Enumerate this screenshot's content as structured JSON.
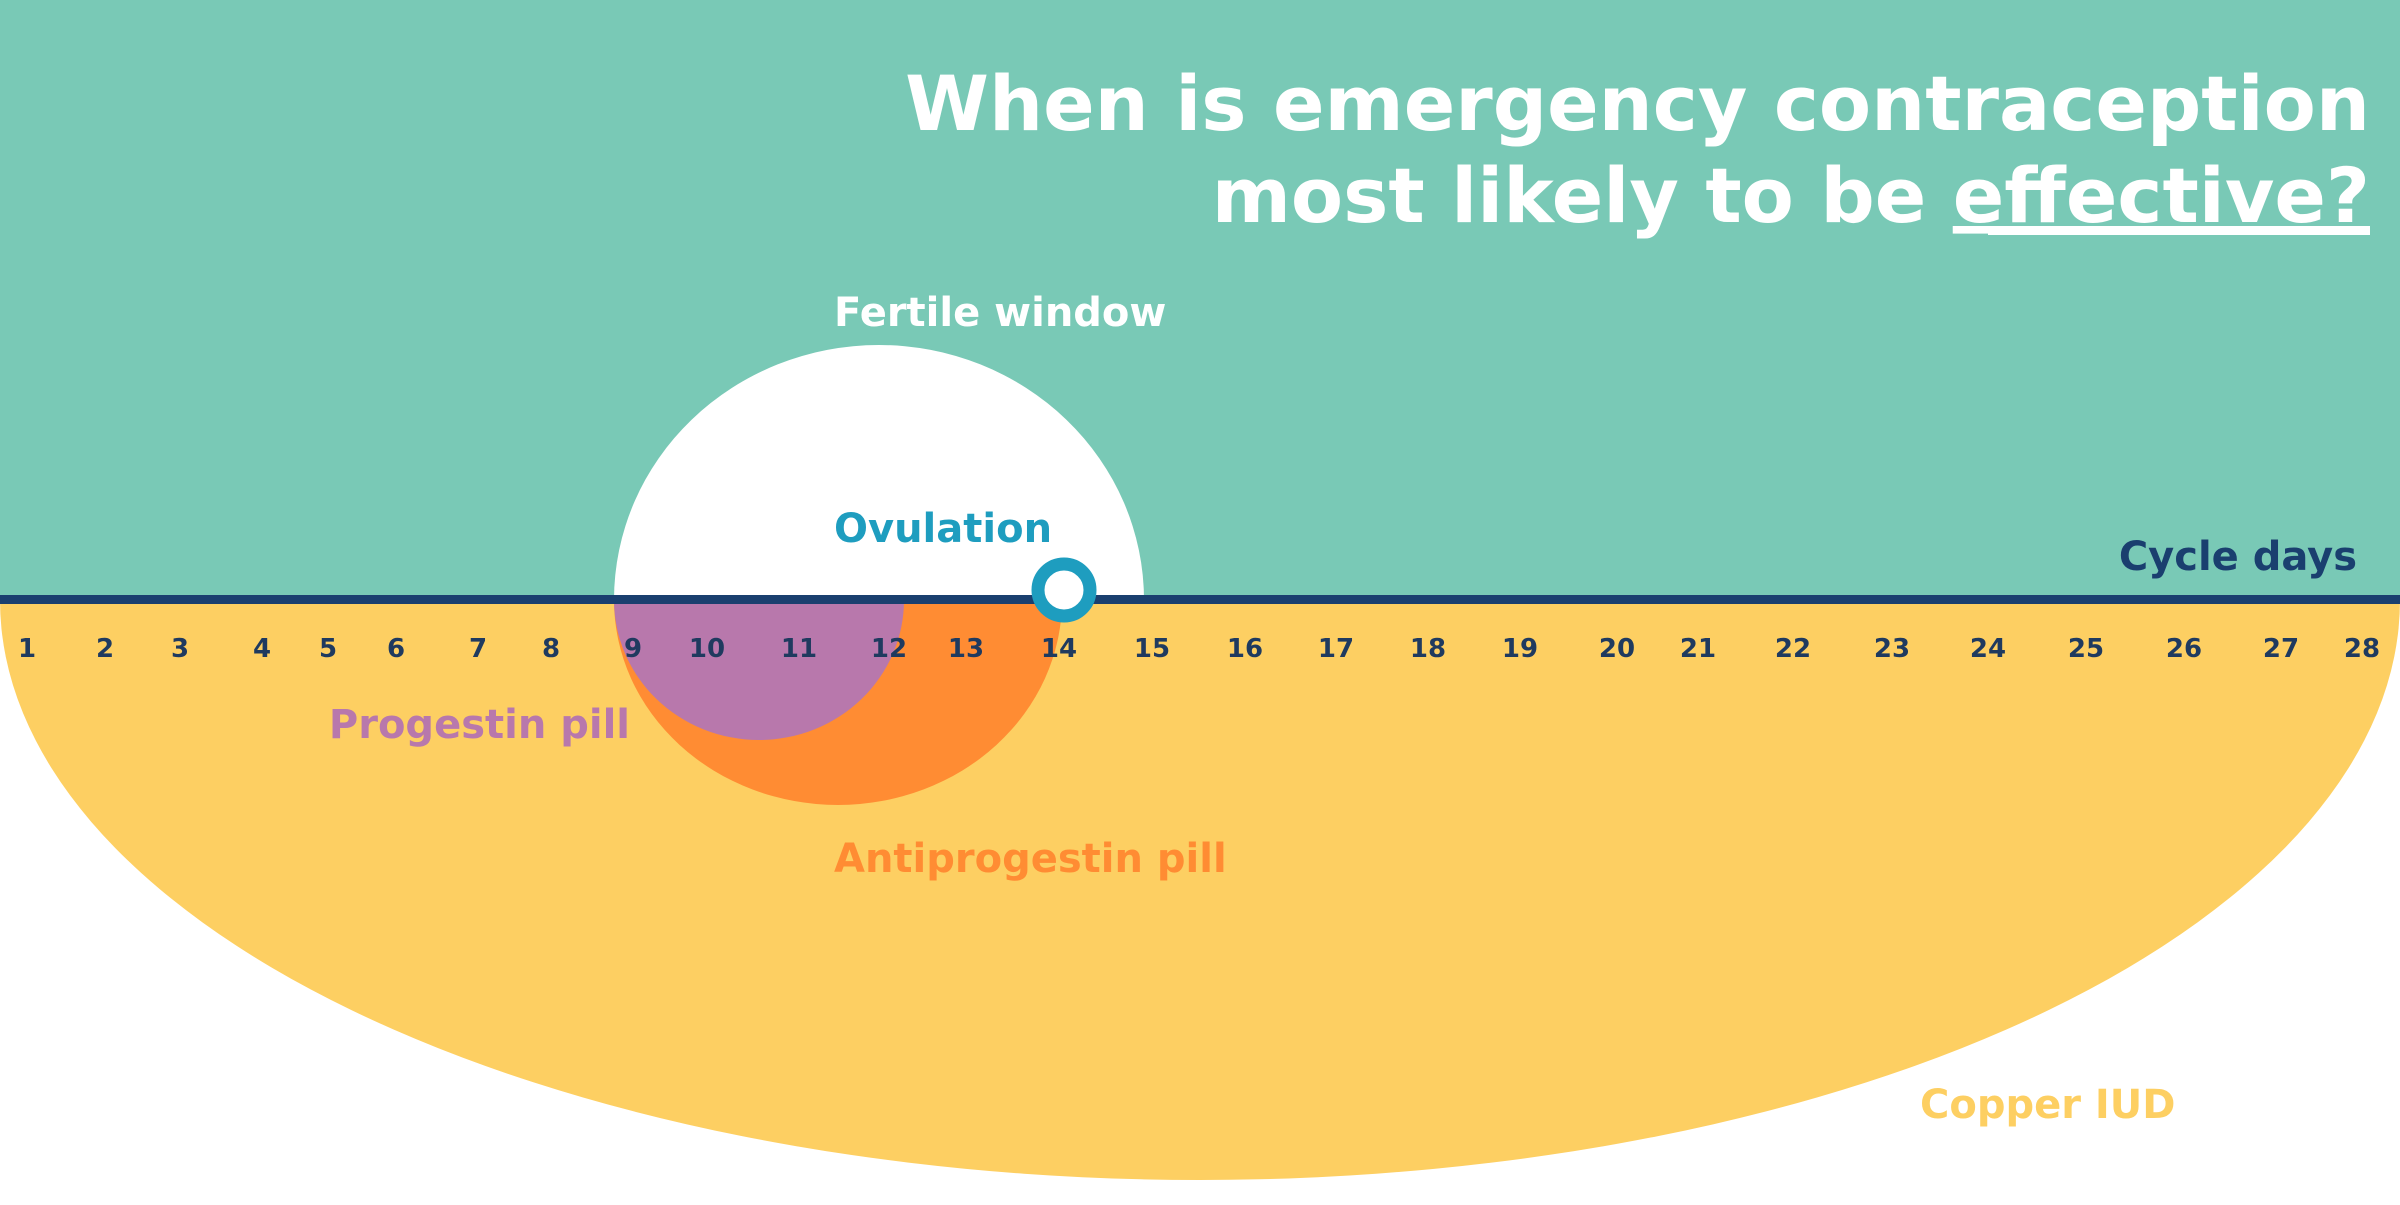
{
  "title": {
    "line1": "When is emergency contraception",
    "line2_prefix": "most likely to be ",
    "line2_emphasis": "effective?"
  },
  "labels": {
    "fertile_window": "Fertile window",
    "ovulation": "Ovulation",
    "cycle_days": "Cycle days",
    "progestin": "Progestin pill",
    "antiprogestin": "Antiprogestin pill",
    "copper_iud": "Copper IUD"
  },
  "axis": {
    "days": [
      "1",
      "2",
      "3",
      "4",
      "5",
      "6",
      "7",
      "8",
      "9",
      "10",
      "11",
      "12",
      "13",
      "14",
      "15",
      "16",
      "17",
      "18",
      "19",
      "20",
      "21",
      "22",
      "23",
      "24",
      "25",
      "26",
      "27",
      "28"
    ]
  },
  "colors": {
    "background": "#79c9b6",
    "axis_line": "#1a3f6f",
    "fertile_window": "#ffffff",
    "ovulation": "#1e9dbf",
    "progestin": "#b878ac",
    "antiprogestin": "#ff8c33",
    "copper_iud": "#fdcf62",
    "tick_text": "#1f3a5f"
  }
}
